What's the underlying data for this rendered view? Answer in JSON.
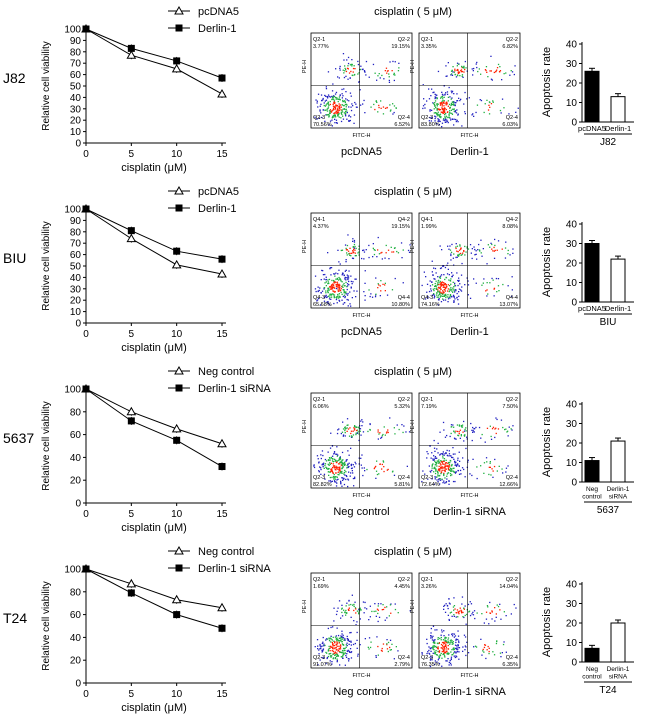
{
  "chart_data": [
    {
      "type": "line",
      "row_label": "J82",
      "title": "",
      "xlabel": "cisplatin (μM)",
      "ylabel": "Relative cell viability",
      "x": [
        0,
        5,
        10,
        15
      ],
      "xlim": [
        0,
        15
      ],
      "ylim": [
        0,
        100
      ],
      "yticks": [
        0,
        10,
        20,
        30,
        40,
        50,
        60,
        70,
        80,
        90,
        100
      ],
      "series": [
        {
          "name": "pcDNA5",
          "marker": "open-triangle",
          "values": [
            100,
            77,
            65,
            43
          ]
        },
        {
          "name": "Derlin-1",
          "marker": "filled-square",
          "values": [
            100,
            83,
            72,
            57
          ]
        }
      ]
    },
    {
      "type": "line",
      "row_label": "BIU",
      "title": "",
      "xlabel": "cisplatin (μM)",
      "ylabel": "Relative cell viability",
      "x": [
        0,
        5,
        10,
        15
      ],
      "xlim": [
        0,
        15
      ],
      "ylim": [
        0,
        100
      ],
      "yticks": [
        0,
        10,
        20,
        30,
        40,
        50,
        60,
        70,
        80,
        90,
        100
      ],
      "series": [
        {
          "name": "pcDNA5",
          "marker": "open-triangle",
          "values": [
            100,
            74,
            51,
            43
          ]
        },
        {
          "name": "Derlin-1",
          "marker": "filled-square",
          "values": [
            100,
            81,
            63,
            56
          ]
        }
      ]
    },
    {
      "type": "line",
      "row_label": "5637",
      "title": "",
      "xlabel": "cisplatin (μM)",
      "ylabel": "Relative cell viability",
      "x": [
        0,
        5,
        10,
        15
      ],
      "xlim": [
        0,
        15
      ],
      "ylim": [
        0,
        100
      ],
      "yticks": [
        0,
        20,
        40,
        60,
        80,
        100
      ],
      "series": [
        {
          "name": "Neg control",
          "marker": "open-triangle",
          "values": [
            100,
            80,
            65,
            52
          ]
        },
        {
          "name": "Derlin-1 siRNA",
          "marker": "filled-square",
          "values": [
            100,
            72,
            55,
            32
          ]
        }
      ]
    },
    {
      "type": "line",
      "row_label": "T24",
      "title": "",
      "xlabel": "cisplatin (μM)",
      "ylabel": "Relative cell viability",
      "x": [
        0,
        5,
        10,
        15
      ],
      "xlim": [
        0,
        15
      ],
      "ylim": [
        0,
        100
      ],
      "yticks": [
        0,
        20,
        40,
        60,
        80,
        100
      ],
      "series": [
        {
          "name": "Neg control",
          "marker": "open-triangle",
          "values": [
            100,
            87,
            73,
            66
          ]
        },
        {
          "name": "Derlin-1 siRNA",
          "marker": "filled-square",
          "values": [
            100,
            79,
            60,
            48
          ]
        }
      ]
    },
    {
      "type": "bar",
      "cell_line": "J82",
      "ylabel": "Apoptosis rate",
      "ylim": [
        0,
        40
      ],
      "yticks": [
        0,
        10,
        20,
        30,
        40
      ],
      "categories": [
        "pcDNA5",
        "Derlin-1"
      ],
      "values": [
        26,
        13
      ]
    },
    {
      "type": "bar",
      "cell_line": "BIU",
      "ylabel": "Apoptosis rate",
      "ylim": [
        0,
        40
      ],
      "yticks": [
        0,
        10,
        20,
        30,
        40
      ],
      "categories": [
        "pcDNA5",
        "Derlin-1"
      ],
      "values": [
        30,
        22
      ]
    },
    {
      "type": "bar",
      "cell_line": "5637",
      "ylabel": "Apoptosis rate",
      "ylim": [
        0,
        40
      ],
      "yticks": [
        0,
        10,
        20,
        30,
        40
      ],
      "categories": [
        "Neg control",
        "Derlin-1 siRNA"
      ],
      "values": [
        11,
        21
      ]
    },
    {
      "type": "bar",
      "cell_line": "T24",
      "ylabel": "Apoptosis rate",
      "ylim": [
        0,
        40
      ],
      "yticks": [
        0,
        10,
        20,
        30,
        40
      ],
      "categories": [
        "Neg control",
        "Derlin-1 siRNA"
      ],
      "values": [
        7,
        20
      ]
    },
    {
      "type": "scatter",
      "kind": "flow-cytometry",
      "row": "J82",
      "header": "cisplatin ( 5 μM)",
      "xlabel": "FITC-H",
      "ylabel": "PE-H",
      "panels": [
        {
          "condition": "pcDNA5",
          "quadrants": [
            {
              "id": "Q2-1",
              "pct": "3.77%"
            },
            {
              "id": "Q2-2",
              "pct": "19.15%"
            },
            {
              "id": "Q2-3",
              "pct": "70.56%"
            },
            {
              "id": "Q2-4",
              "pct": "6.52%"
            }
          ]
        },
        {
          "condition": "Derlin-1",
          "quadrants": [
            {
              "id": "Q2-1",
              "pct": "3.35%"
            },
            {
              "id": "Q2-2",
              "pct": "6.82%"
            },
            {
              "id": "Q2-3",
              "pct": "83.80%"
            },
            {
              "id": "Q2-4",
              "pct": "6.03%"
            }
          ]
        }
      ]
    },
    {
      "type": "scatter",
      "kind": "flow-cytometry",
      "row": "BIU",
      "header": "cisplatin ( 5 μM)",
      "xlabel": "FITC-H",
      "ylabel": "PE-H",
      "panels": [
        {
          "condition": "pcDNA5",
          "quadrants": [
            {
              "id": "Q4-1",
              "pct": "4.37%"
            },
            {
              "id": "Q4-2",
              "pct": "19.15%"
            },
            {
              "id": "Q4-3",
              "pct": "65.68%"
            },
            {
              "id": "Q4-4",
              "pct": "10.80%"
            }
          ]
        },
        {
          "condition": "Derlin-1",
          "quadrants": [
            {
              "id": "Q4-1",
              "pct": "1.99%"
            },
            {
              "id": "Q4-2",
              "pct": "8.08%"
            },
            {
              "id": "Q4-3",
              "pct": "74.16%"
            },
            {
              "id": "Q4-4",
              "pct": "13.07%"
            }
          ]
        }
      ]
    },
    {
      "type": "scatter",
      "kind": "flow-cytometry",
      "row": "5637",
      "header": "cisplatin ( 5 μM)",
      "xlabel": "FITC-H",
      "ylabel": "PE-H",
      "panels": [
        {
          "condition": "Neg control",
          "quadrants": [
            {
              "id": "Q2-1",
              "pct": "6.06%"
            },
            {
              "id": "Q2-2",
              "pct": "5.32%"
            },
            {
              "id": "Q2-3",
              "pct": "82.82%"
            },
            {
              "id": "Q2-4",
              "pct": "5.81%"
            }
          ]
        },
        {
          "condition": "Derlin-1 siRNA",
          "quadrants": [
            {
              "id": "Q2-1",
              "pct": "7.19%"
            },
            {
              "id": "Q2-2",
              "pct": "7.50%"
            },
            {
              "id": "Q2-3",
              "pct": "72.64%"
            },
            {
              "id": "Q2-4",
              "pct": "12.66%"
            }
          ]
        }
      ]
    },
    {
      "type": "scatter",
      "kind": "flow-cytometry",
      "row": "T24",
      "header": "cisplatin ( 5 μM)",
      "xlabel": "FITC-H",
      "ylabel": "PE-H",
      "panels": [
        {
          "condition": "Neg control",
          "quadrants": [
            {
              "id": "Q2-1",
              "pct": "1.69%"
            },
            {
              "id": "Q2-2",
              "pct": "4.45%"
            },
            {
              "id": "Q2-3",
              "pct": "91.07%"
            },
            {
              "id": "Q2-4",
              "pct": "2.79%"
            }
          ]
        },
        {
          "condition": "Derlin-1 siRNA",
          "quadrants": [
            {
              "id": "Q2-1",
              "pct": "3.26%"
            },
            {
              "id": "Q2-2",
              "pct": "14.04%"
            },
            {
              "id": "Q2-3",
              "pct": "76.35%"
            },
            {
              "id": "Q2-4",
              "pct": "6.35%"
            }
          ]
        }
      ]
    }
  ],
  "colors": {
    "ink": "#000000",
    "bar_filled": "#000000",
    "bar_open": "#ffffff",
    "dot_low": "#2020c0",
    "dot_mid": "#20b040",
    "dot_high": "#ff2000"
  }
}
